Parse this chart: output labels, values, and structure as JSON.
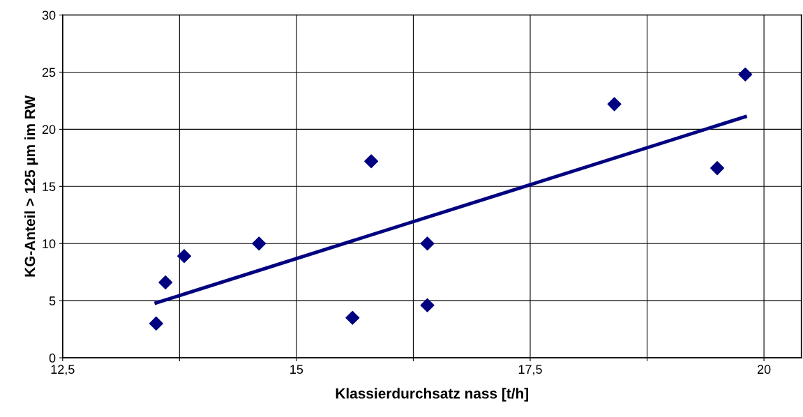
{
  "chart_data": {
    "type": "scatter",
    "xlabel": "Klassierdurchsatz nass [t/h]",
    "ylabel": "KG-Anteil > 125 µm im RW",
    "xlim": [
      12.5,
      20.4
    ],
    "xticks": [
      {
        "value": 12.5,
        "label": "12,5"
      },
      {
        "value": 13.75,
        "label": null
      },
      15,
      {
        "value": 16.25,
        "label": null
      },
      {
        "value": 17.5,
        "label": "17,5"
      },
      {
        "value": 18.75,
        "label": null
      },
      20
    ],
    "ylim": [
      0,
      30
    ],
    "yticks": [
      0,
      5,
      10,
      15,
      20,
      25,
      30
    ],
    "grid": true,
    "series": [
      {
        "color": "#000080",
        "marker": "diamond",
        "x": [
          13.5,
          13.6,
          13.8,
          14.6,
          15.6,
          15.8,
          16.4,
          16.4,
          18.4,
          19.5,
          19.8
        ],
        "values": [
          3.0,
          6.6,
          8.9,
          10.0,
          3.5,
          17.2,
          10.0,
          4.6,
          22.2,
          16.6,
          24.8
        ]
      },
      {
        "type": "line",
        "color": "#000080",
        "marker": "none",
        "line_style": "solid",
        "x": [
          13.5,
          19.8
        ],
        "values": [
          4.8,
          21.1
        ]
      }
    ]
  }
}
